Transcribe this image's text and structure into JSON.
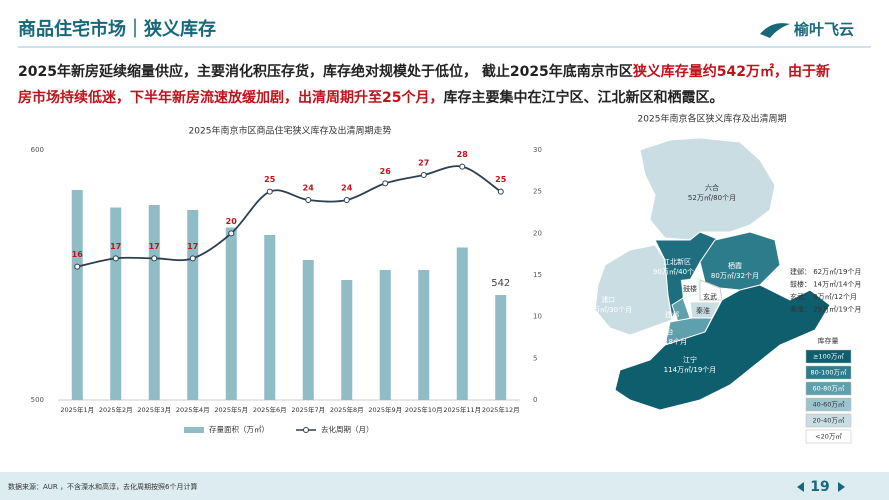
{
  "header": {
    "title": "商品住宅市场｜狭义库存",
    "logo": "榆叶飞云"
  },
  "summary": {
    "lines": [
      [
        "2025年新房延续缩量供应，主要消化积压存货，库存绝对规模处于低位， 截止2025年底南京市区",
        "狭义库存量约542万㎡，由于新"
      ],
      [
        "房市场持续低迷，下半年新房流速放缓加剧，出清周期升至25个月，",
        "库存主要集中在江宁区、江北新区和栖霞区。"
      ]
    ]
  },
  "chart_data": {
    "type": "combo",
    "title": "2025年南京市区商品住宅狭义库存及出清周期走势",
    "categories": [
      "2025年1月",
      "2025年2月",
      "2025年3月",
      "2025年4月",
      "2025年5月",
      "2025年6月",
      "2025年7月",
      "2025年8月",
      "2025年9月",
      "2025年10月",
      "2025年11月",
      "2025年12月"
    ],
    "series": [
      {
        "name": "存量面积（万㎡）",
        "type": "bar",
        "color": "#8fbcc5",
        "values": [
          584,
          577,
          578,
          576,
          569,
          566,
          556,
          548,
          552,
          552,
          561,
          542
        ]
      },
      {
        "name": "去化周期（月）",
        "type": "line",
        "axis": "y2",
        "color": "#2d3e50",
        "label_color": "#c0121b",
        "values": [
          16,
          17,
          17,
          17,
          20,
          25,
          24,
          24,
          26,
          27,
          28,
          25
        ]
      }
    ],
    "ylim": [
      500,
      600
    ],
    "yticks": [
      500,
      600
    ],
    "y2lim": [
      0,
      30
    ],
    "y2ticks": [
      0,
      5,
      10,
      15,
      20,
      25,
      30
    ],
    "grid": false
  },
  "map": {
    "title": "2025年南京各区狭义库存及出清周期",
    "regions": [
      {
        "name": "六合",
        "label": "52万㎡/80个月"
      },
      {
        "name": "江北新区",
        "label": "90万㎡/40个月"
      },
      {
        "name": "栖霞",
        "label": "80万㎡/32个月"
      },
      {
        "name": "浦口",
        "label": "51万㎡/30个月"
      },
      {
        "name": "雨花台",
        "label": "43万㎡/18个月"
      },
      {
        "name": "江宁",
        "label": "114万㎡/19个月"
      },
      {
        "name": "鼓楼"
      },
      {
        "name": "玄武"
      },
      {
        "name": "建邺"
      },
      {
        "name": "秦淮"
      }
    ],
    "notes": [
      "建邺：  62万㎡/19个月",
      "鼓楼：  14万㎡/14个月",
      "玄武：  9万㎡/12个月",
      "秦淮：  29万㎡/19个月"
    ],
    "legend": {
      "title": "库存量",
      "items": [
        "≥100万㎡",
        "80-100万㎡",
        "60-80万㎡",
        "40-60万㎡",
        "20-40万㎡",
        "<20万㎡"
      ]
    }
  },
  "footer": {
    "source": "数据来源：AUR ，不含溧水和高淳，去化周期按照6个月计算",
    "page": 19
  }
}
